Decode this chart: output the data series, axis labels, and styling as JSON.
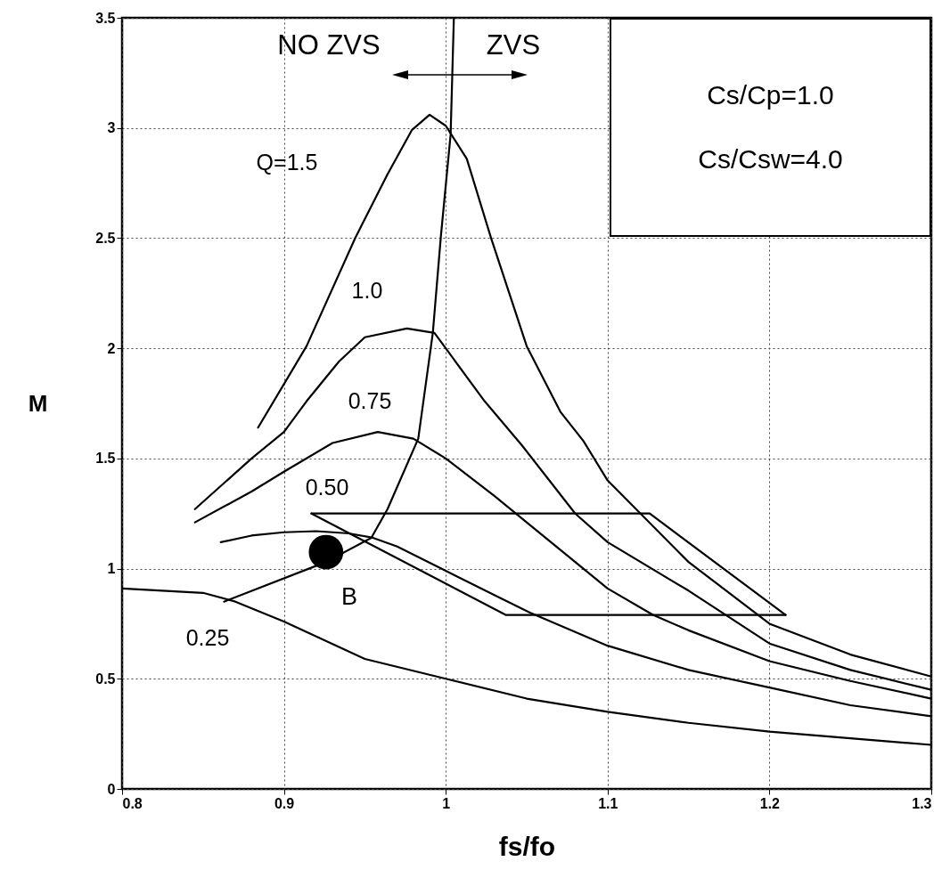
{
  "chart_data": {
    "type": "line",
    "xlabel": "fs/fo",
    "ylabel": "M",
    "xlim": [
      0.8,
      1.3
    ],
    "ylim": [
      0,
      3.5
    ],
    "xticks": [
      0.8,
      0.9,
      1,
      1.1,
      1.2,
      1.3
    ],
    "yticks": [
      0,
      0.5,
      1,
      1.5,
      2,
      2.5,
      3,
      3.5
    ],
    "grid": true,
    "line_style": "solid",
    "series": [
      {
        "color": "#000000",
        "x": [
          0.8,
          0.85,
          0.87,
          0.9,
          0.95,
          1.0,
          1.05,
          1.1,
          1.15,
          1.2,
          1.25,
          1.3
        ],
        "values": [
          0.91,
          0.89,
          0.85,
          0.76,
          0.59,
          0.5,
          0.41,
          0.35,
          0.3,
          0.26,
          0.23,
          0.2
        ]
      },
      {
        "color": "#000000",
        "x": [
          0.861,
          0.88,
          0.9,
          0.92,
          0.94,
          0.955,
          0.97,
          1.0,
          1.03,
          1.052,
          1.1,
          1.15,
          1.2,
          1.25,
          1.3
        ],
        "values": [
          1.12,
          1.15,
          1.165,
          1.17,
          1.16,
          1.14,
          1.1,
          0.99,
          0.88,
          0.8,
          0.65,
          0.54,
          0.46,
          0.38,
          0.33
        ]
      },
      {
        "color": "#000000",
        "x": [
          0.845,
          0.88,
          0.9,
          0.93,
          0.958,
          0.98,
          1.0,
          1.03,
          1.05,
          1.1,
          1.128,
          1.15,
          1.2,
          1.25,
          1.3
        ],
        "values": [
          1.21,
          1.35,
          1.44,
          1.57,
          1.62,
          1.59,
          1.5,
          1.33,
          1.21,
          0.91,
          0.79,
          0.72,
          0.58,
          0.49,
          0.41
        ]
      },
      {
        "color": "#000000",
        "x": [
          0.845,
          0.88,
          0.9,
          0.914,
          0.934,
          0.95,
          0.976,
          0.993,
          1.0,
          1.024,
          1.047,
          1.08,
          1.1,
          1.15,
          1.2,
          1.25,
          1.3
        ],
        "values": [
          1.27,
          1.5,
          1.62,
          1.76,
          1.94,
          2.05,
          2.09,
          2.07,
          2.0,
          1.76,
          1.56,
          1.25,
          1.12,
          0.9,
          0.66,
          0.54,
          0.45
        ]
      },
      {
        "color": "#000000",
        "x": [
          0.884,
          0.914,
          0.944,
          0.964,
          0.979,
          0.99,
          1.0,
          1.013,
          1.028,
          1.05,
          1.071,
          1.085,
          1.1,
          1.15,
          1.2,
          1.25,
          1.3
        ],
        "values": [
          1.64,
          2.01,
          2.5,
          2.79,
          2.99,
          3.06,
          3.01,
          2.86,
          2.5,
          2.01,
          1.71,
          1.58,
          1.4,
          1.03,
          0.75,
          0.61,
          0.51
        ]
      },
      {
        "color": "#000000",
        "x": [
          0.863,
          0.926,
          0.954,
          0.964,
          0.983,
          0.992,
          0.997,
          1.003,
          1.005
        ],
        "values": [
          0.85,
          1.03,
          1.14,
          1.27,
          1.59,
          2.07,
          2.51,
          2.97,
          3.5
        ]
      },
      {
        "color": "#000000",
        "x": [
          0.917,
          1.037,
          1.21
        ],
        "values": [
          1.25,
          0.79,
          0.79
        ]
      },
      {
        "color": "#000000",
        "x": [
          0.917,
          1.126,
          1.21
        ],
        "values": [
          1.25,
          1.25,
          0.79
        ]
      },
      {
        "type": "scatter",
        "marker": "circle",
        "color": "#000000",
        "x": [
          0.926
        ],
        "values": [
          1.075
        ]
      }
    ],
    "annotations": [
      "NO ZVS",
      "ZVS",
      "Q=1.5",
      "1.0",
      "0.75",
      "0.50",
      "0.25",
      "B",
      "Cs/Cp=1.0",
      "Cs/Csw=4.0"
    ]
  }
}
